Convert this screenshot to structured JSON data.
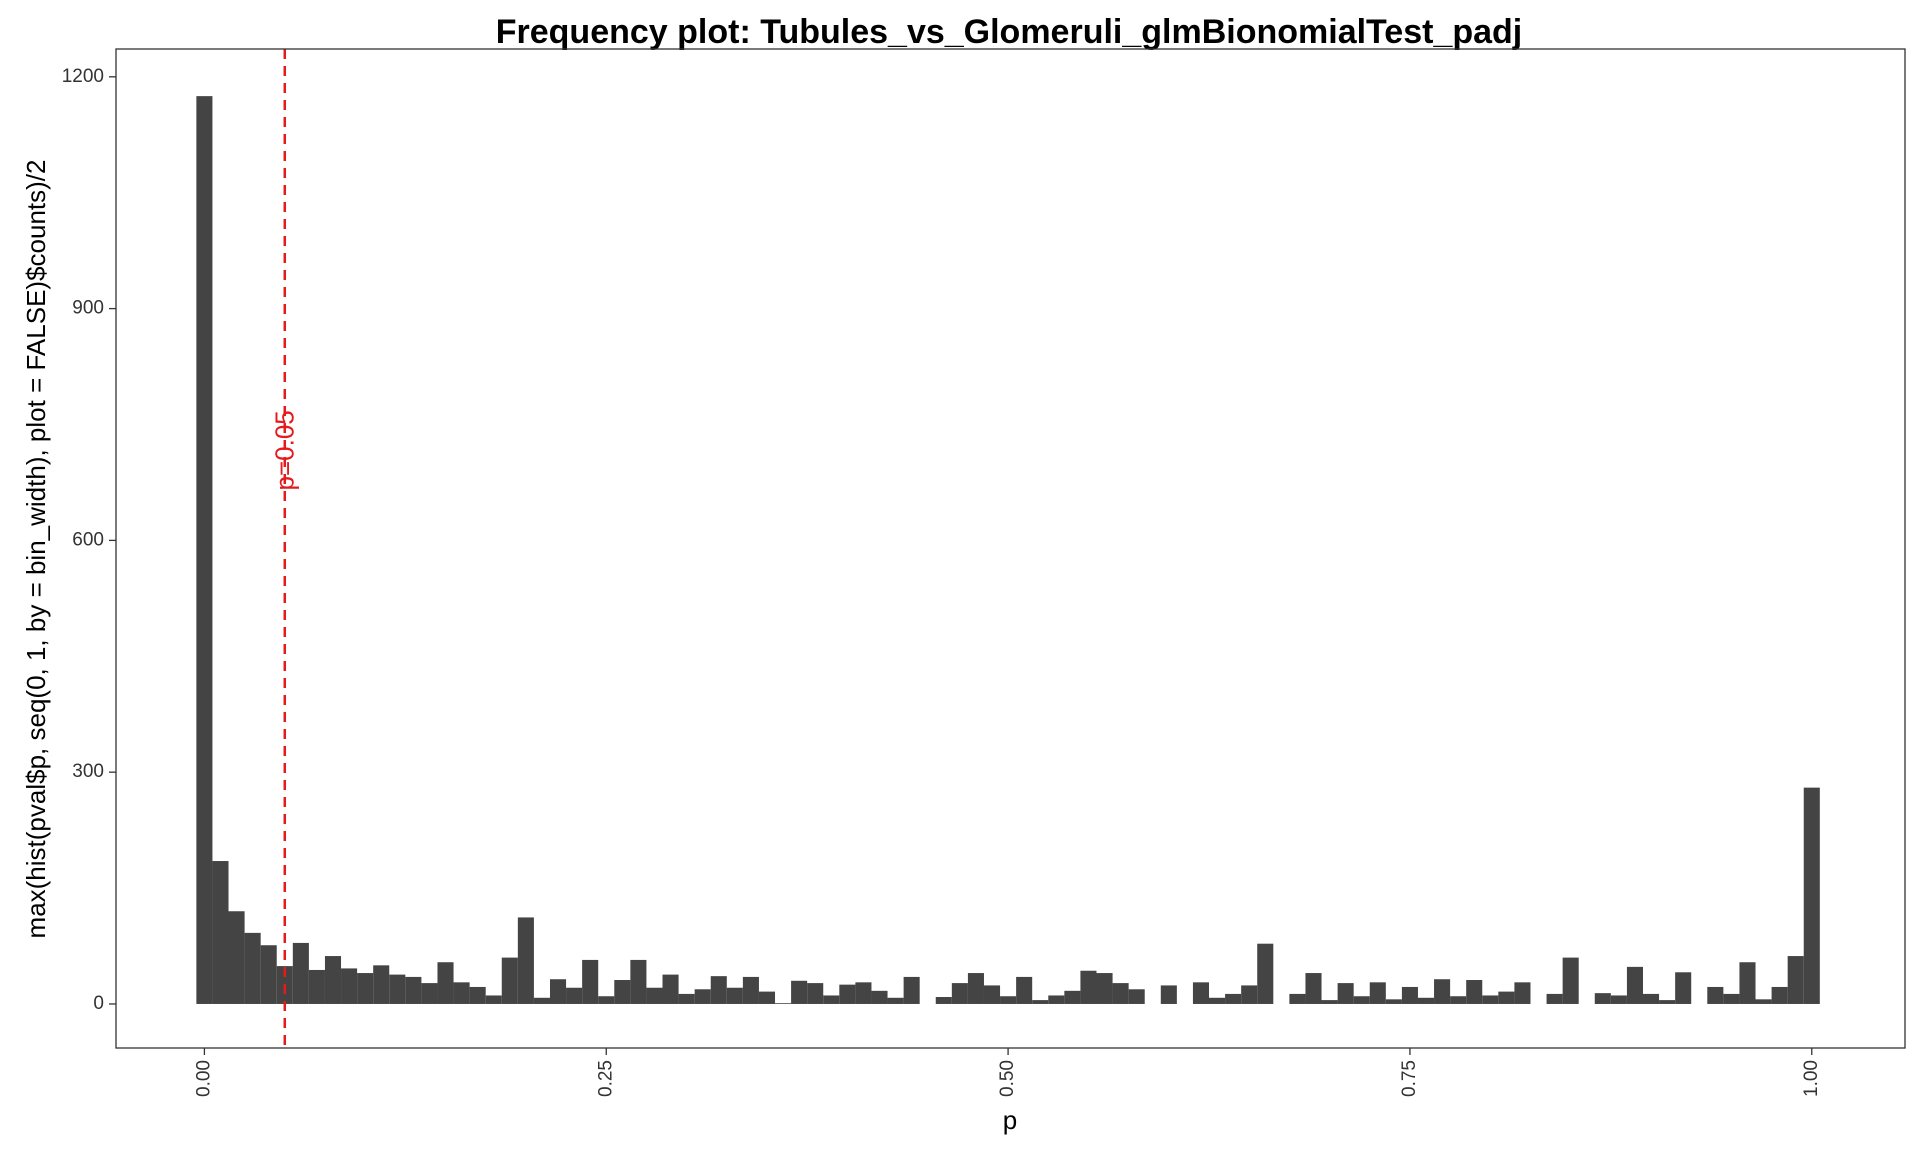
{
  "chart_data": {
    "type": "histogram",
    "title": "Frequency plot: Tubules_vs_Glomeruli_glmBionomialTest_padj",
    "x_label": "p",
    "y_label": "max(hist(pval$p, seq(0, 1, by = bin_width), plot = FALSE)$counts)/2",
    "bins": [
      -0.005,
      0.005,
      0.015,
      0.025,
      0.035,
      0.045,
      0.055,
      0.065,
      0.075,
      0.085,
      0.095,
      0.105,
      0.115,
      0.125,
      0.135,
      0.145,
      0.155,
      0.165,
      0.175,
      0.185,
      0.195,
      0.205,
      0.215,
      0.225,
      0.235,
      0.245,
      0.255,
      0.265,
      0.275,
      0.285,
      0.295,
      0.305,
      0.315,
      0.325,
      0.335,
      0.345,
      0.355,
      0.365,
      0.375,
      0.385,
      0.395,
      0.405,
      0.415,
      0.425,
      0.435,
      0.445,
      0.455,
      0.465,
      0.475,
      0.485,
      0.495,
      0.505,
      0.515,
      0.525,
      0.535,
      0.545,
      0.555,
      0.565,
      0.575,
      0.585,
      0.595,
      0.605,
      0.615,
      0.625,
      0.635,
      0.645,
      0.655,
      0.665,
      0.675,
      0.685,
      0.695,
      0.705,
      0.715,
      0.725,
      0.735,
      0.745,
      0.755,
      0.765,
      0.775,
      0.785,
      0.795,
      0.805,
      0.815,
      0.825,
      0.835,
      0.845,
      0.855,
      0.865,
      0.875,
      0.885,
      0.895,
      0.905,
      0.915,
      0.925,
      0.935,
      0.945,
      0.955,
      0.965,
      0.975,
      0.985,
      0.995,
      1.005
    ],
    "counts": [
      1175,
      185,
      120,
      92,
      76,
      49,
      79,
      44,
      62,
      46,
      40,
      50,
      38,
      35,
      27,
      54,
      28,
      22,
      11,
      60,
      112,
      8,
      32,
      21,
      57,
      10,
      31,
      57,
      21,
      38,
      13,
      19,
      36,
      21,
      35,
      16,
      1,
      30,
      27,
      11,
      25,
      28,
      17,
      8,
      35,
      0,
      9,
      27,
      40,
      24,
      10,
      35,
      5,
      11,
      17,
      43,
      40,
      27,
      19,
      0,
      24,
      0,
      28,
      8,
      13,
      24,
      78,
      0,
      13,
      40,
      5,
      27,
      10,
      28,
      6,
      22,
      8,
      32,
      10,
      31,
      11,
      16,
      28,
      0,
      13,
      60,
      0,
      14,
      11,
      48,
      13,
      5,
      41,
      0,
      22,
      13,
      54,
      6,
      22,
      62,
      280
    ],
    "color": "#444444",
    "xlim": [
      -0.055,
      1.058
    ],
    "ylim": [
      -57,
      1236
    ],
    "xticks": [
      {
        "value": 0,
        "label": "0.00"
      },
      {
        "value": 0.25,
        "label": "0.25"
      },
      {
        "value": 0.5,
        "label": "0.50"
      },
      {
        "value": 0.75,
        "label": "0.75"
      },
      {
        "value": 1,
        "label": "1.00"
      }
    ],
    "yticks": [
      0,
      300,
      600,
      900,
      1200
    ],
    "grid": false,
    "vline": {
      "x": 0.05,
      "label": "p=0.05",
      "color": "#e41a1c"
    }
  }
}
